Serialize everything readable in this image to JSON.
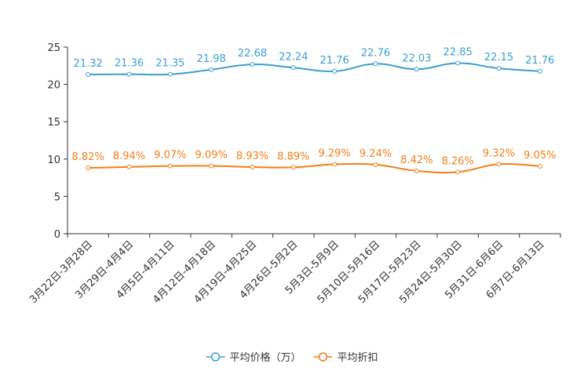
{
  "chart_data": {
    "type": "line",
    "title": "",
    "xlabel": "",
    "ylabel": "",
    "ylim": [
      0,
      25
    ],
    "yticks": [
      "0",
      "5",
      "10",
      "15",
      "20",
      "25"
    ],
    "categories": [
      "3月22日-3月28日",
      "3月29日-4月4日",
      "4月5日-4月11日",
      "4月12日-4月18日",
      "4月19日-4月25日",
      "4月26日-5月2日",
      "5月3日-5月9日",
      "5月10日-5月16日",
      "5月17日-5月23日",
      "5月24日-5月30日",
      "5月31日-6月6日",
      "6月7日-6月13日"
    ],
    "series": [
      {
        "name": "平均价格（万）",
        "color": "#3a9fd0",
        "values": [
          21.32,
          21.36,
          21.35,
          21.98,
          22.68,
          22.24,
          21.76,
          22.76,
          22.03,
          22.85,
          22.15,
          21.76
        ],
        "labels": [
          "21.32",
          "21.36",
          "21.35",
          "21.98",
          "22.68",
          "22.24",
          "21.76",
          "22.76",
          "22.03",
          "22.85",
          "22.15",
          "21.76"
        ]
      },
      {
        "name": "平均折扣",
        "color": "#f07f17",
        "values": [
          8.82,
          8.94,
          9.07,
          9.09,
          8.93,
          8.89,
          9.29,
          9.24,
          8.42,
          8.26,
          9.32,
          9.05
        ],
        "labels": [
          "8.82%",
          "8.94%",
          "9.07%",
          "9.09%",
          "8.93%",
          "8.89%",
          "9.29%",
          "9.24%",
          "8.42%",
          "8.26%",
          "9.32%",
          "9.05%"
        ]
      }
    ],
    "grid": false,
    "legend_position": "bottom"
  }
}
